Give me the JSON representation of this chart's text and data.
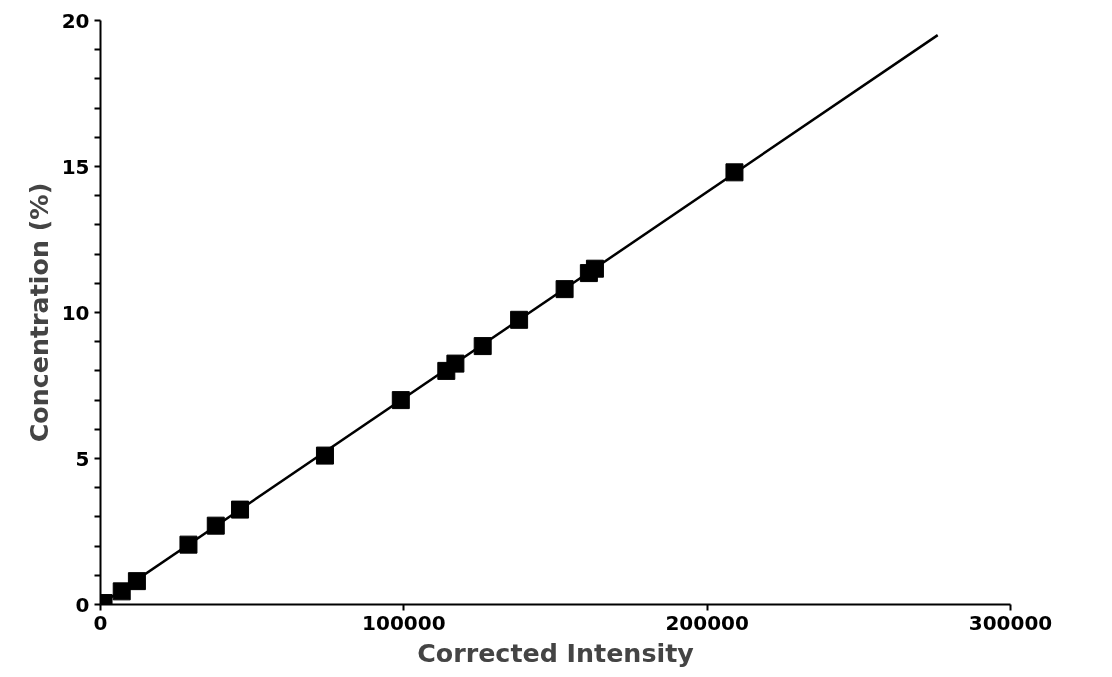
{
  "chart_data": {
    "type": "scatter",
    "xlabel": "Corrected Intensity",
    "ylabel": "Concentration (%)",
    "xlim": [
      0,
      300000
    ],
    "ylim": [
      0,
      20
    ],
    "xticks": [
      0,
      100000,
      200000,
      300000
    ],
    "yticks": [
      0,
      {
        "value": 1,
        "label": null
      },
      {
        "value": 2,
        "label": null
      },
      {
        "value": 3,
        "label": null
      },
      {
        "value": 4,
        "label": null
      },
      5,
      {
        "value": 6,
        "label": null
      },
      {
        "value": 7,
        "label": null
      },
      {
        "value": 8,
        "label": null
      },
      {
        "value": 9,
        "label": null
      },
      10,
      {
        "value": 11,
        "label": null
      },
      {
        "value": 12,
        "label": null
      },
      {
        "value": 13,
        "label": null
      },
      {
        "value": 14,
        "label": null
      },
      15,
      {
        "value": 16,
        "label": null
      },
      {
        "value": 17,
        "label": null
      },
      {
        "value": 18,
        "label": null
      },
      {
        "value": 19,
        "label": null
      },
      20
    ],
    "grid": false,
    "marker": "square",
    "series": [
      {
        "color": "#000000",
        "x": [
          1000,
          7000,
          12000,
          29000,
          38000,
          46000,
          74000,
          99000,
          114000,
          117000,
          126000,
          138000,
          153000,
          161000,
          163000,
          209000
        ],
        "values": [
          0.05,
          0.45,
          0.8,
          2.05,
          2.7,
          3.25,
          5.1,
          7.0,
          8.0,
          8.25,
          8.85,
          9.75,
          10.8,
          11.35,
          11.5,
          14.8
        ]
      },
      {
        "type": "line",
        "marker": "none",
        "color": "#000000",
        "x": [
          0,
          276000
        ],
        "values": [
          0,
          19.5
        ]
      }
    ]
  }
}
